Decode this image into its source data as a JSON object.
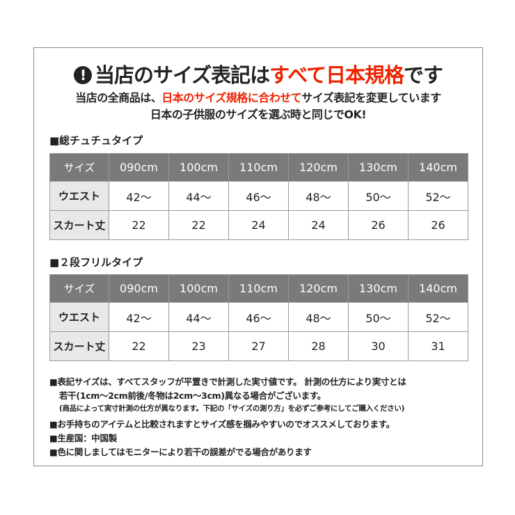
{
  "headline": {
    "icon": "exclamation-circle-icon",
    "before": "当店のサイズ表記は",
    "highlight": "すべて日本規格",
    "after": "です"
  },
  "subtitle": {
    "line1_before": "当店の全商品は、",
    "line1_highlight": "日本のサイズ規格に合わせて",
    "line1_after": "サイズ表記を変更しています",
    "line2": "日本の子供服のサイズを選ぶ時と同じでOK!"
  },
  "colors": {
    "accent": "#ee2200",
    "header_bg": "#7a7a7a",
    "label_bg": "#e8e8e8"
  },
  "tables": [
    {
      "title": "■総チュチュタイプ",
      "header": [
        "サイズ",
        "090cm",
        "100cm",
        "110cm",
        "120cm",
        "130cm",
        "140cm"
      ],
      "rows": [
        [
          "ウエスト",
          "42～",
          "44～",
          "46～",
          "48～",
          "50～",
          "52～"
        ],
        [
          "スカート丈",
          "22",
          "22",
          "24",
          "24",
          "26",
          "26"
        ]
      ]
    },
    {
      "title": "■２段フリルタイプ",
      "header": [
        "サイズ",
        "090cm",
        "100cm",
        "110cm",
        "120cm",
        "130cm",
        "140cm"
      ],
      "rows": [
        [
          "ウエスト",
          "42～",
          "44～",
          "46～",
          "48～",
          "50～",
          "52～"
        ],
        [
          "スカート丈",
          "22",
          "23",
          "27",
          "28",
          "30",
          "31"
        ]
      ]
    }
  ],
  "notes": {
    "n1a": "■表記サイズは、すべてスタッフが平置きで計測した実寸値です。 計測の仕方により実寸とは",
    "n1b": "若干(1cm～2cm前後/冬物は2cm～3cm)異なる場合がございます。",
    "n1c": "(商品によって実寸計測の仕方が異なります。下記の「サイズの測り方」を必ずご参考にしてご購入ください)",
    "n2": "■お手持ちのアイテムと比較されますとサイズ感を掴みやすいのでオススメしております。",
    "n3": "■生産国：中国製",
    "n4": "■色に関しましてはモニターにより若干の誤差がでる場合があります"
  }
}
